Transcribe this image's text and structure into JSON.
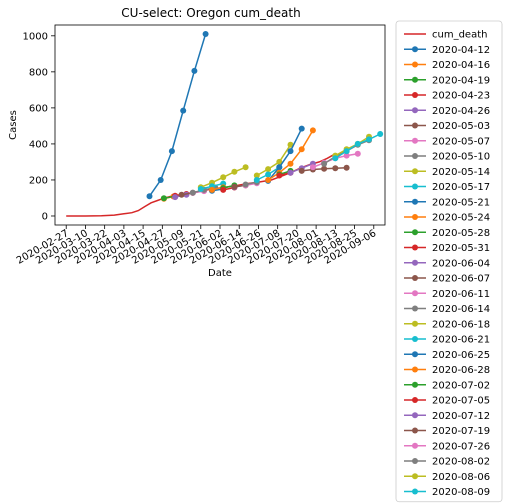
{
  "chart_data": {
    "type": "line",
    "title": "CU-select: Oregon cum_death",
    "xlabel": "Date",
    "ylabel": "Cases",
    "xlim": [
      "2020-02-20",
      "2020-09-13"
    ],
    "ylim": [
      -50,
      1060
    ],
    "x_ticks": [
      "2020-02-27",
      "2020-03-10",
      "2020-03-22",
      "2020-04-03",
      "2020-04-15",
      "2020-04-27",
      "2020-05-09",
      "2020-05-21",
      "2020-06-02",
      "2020-06-14",
      "2020-06-26",
      "2020-07-08",
      "2020-07-20",
      "2020-08-01",
      "2020-08-13",
      "2020-08-25",
      "2020-09-06"
    ],
    "y_ticks": [
      0,
      200,
      400,
      600,
      800,
      1000
    ],
    "legend_position": "outside-right",
    "actual": {
      "name": "cum_death",
      "color": "#d62728",
      "x": [
        "2020-02-27",
        "2020-03-10",
        "2020-03-20",
        "2020-03-28",
        "2020-04-03",
        "2020-04-08",
        "2020-04-12",
        "2020-04-16",
        "2020-04-20",
        "2020-04-24",
        "2020-04-28",
        "2020-05-02",
        "2020-05-08",
        "2020-05-14",
        "2020-05-20",
        "2020-05-28",
        "2020-06-05",
        "2020-06-13",
        "2020-06-20",
        "2020-06-27",
        "2020-07-04",
        "2020-07-10",
        "2020-07-16",
        "2020-07-22",
        "2020-07-28",
        "2020-08-03",
        "2020-08-08",
        "2020-08-13"
      ],
      "y": [
        0,
        0,
        1,
        5,
        12,
        18,
        30,
        52,
        73,
        86,
        99,
        108,
        118,
        127,
        137,
        150,
        160,
        170,
        181,
        189,
        200,
        220,
        240,
        265,
        285,
        300,
        320,
        345
      ]
    },
    "series": [
      {
        "name": "2020-04-12",
        "color": "#1f77b4",
        "x": [
          "2020-04-19",
          "2020-04-26",
          "2020-05-03",
          "2020-05-10",
          "2020-05-17",
          "2020-05-24"
        ],
        "y": [
          110,
          200,
          360,
          585,
          805,
          1010
        ]
      },
      {
        "name": "2020-04-16",
        "color": "#ff7f0e",
        "x": [
          "2020-04-28",
          "2020-05-04"
        ],
        "y": [
          96,
          108
        ]
      },
      {
        "name": "2020-04-19",
        "color": "#2ca02c",
        "x": [
          "2020-04-28",
          "2020-05-05"
        ],
        "y": [
          98,
          110
        ]
      },
      {
        "name": "2020-04-23",
        "color": "#d62728",
        "x": [
          "2020-05-05",
          "2020-05-12"
        ],
        "y": [
          112,
          122
        ]
      },
      {
        "name": "2020-04-26",
        "color": "#9467bd",
        "x": [
          "2020-05-05",
          "2020-05-12"
        ],
        "y": [
          105,
          118
        ]
      },
      {
        "name": "2020-05-03",
        "color": "#8c564b",
        "x": [
          "2020-05-09",
          "2020-05-16",
          "2020-05-23"
        ],
        "y": [
          118,
          128,
          140
        ]
      },
      {
        "name": "2020-05-07",
        "color": "#e377c2",
        "x": [
          "2020-05-16",
          "2020-05-23"
        ],
        "y": [
          128,
          138
        ]
      },
      {
        "name": "2020-05-10",
        "color": "#7f7f7f",
        "x": [
          "2020-05-16",
          "2020-05-23",
          "2020-05-30"
        ],
        "y": [
          130,
          145,
          158
        ]
      },
      {
        "name": "2020-05-14",
        "color": "#bcbd22",
        "x": [
          "2020-05-21",
          "2020-05-28",
          "2020-06-04",
          "2020-06-11",
          "2020-06-18"
        ],
        "y": [
          160,
          185,
          215,
          245,
          270
        ]
      },
      {
        "name": "2020-05-17",
        "color": "#17becf",
        "x": [
          "2020-05-21",
          "2020-05-28",
          "2020-06-04"
        ],
        "y": [
          150,
          165,
          180
        ]
      },
      {
        "name": "2020-05-21",
        "color": "#1f77b4",
        "x": [
          "2020-05-28",
          "2020-06-04"
        ],
        "y": [
          140,
          150
        ]
      },
      {
        "name": "2020-05-24",
        "color": "#ff7f0e",
        "x": [
          "2020-05-28",
          "2020-06-04"
        ],
        "y": [
          145,
          160
        ]
      },
      {
        "name": "2020-05-28",
        "color": "#2ca02c",
        "x": [
          "2020-06-04",
          "2020-06-11"
        ],
        "y": [
          155,
          170
        ]
      },
      {
        "name": "2020-05-31",
        "color": "#d62728",
        "x": [
          "2020-06-04",
          "2020-06-11"
        ],
        "y": [
          145,
          158
        ]
      },
      {
        "name": "2020-06-04",
        "color": "#9467bd",
        "x": [
          "2020-06-11",
          "2020-06-18"
        ],
        "y": [
          160,
          172
        ]
      },
      {
        "name": "2020-06-07",
        "color": "#8c564b",
        "x": [
          "2020-06-11",
          "2020-06-18"
        ],
        "y": [
          162,
          170
        ]
      },
      {
        "name": "2020-06-11",
        "color": "#e377c2",
        "x": [
          "2020-06-18",
          "2020-06-25"
        ],
        "y": [
          170,
          182
        ]
      },
      {
        "name": "2020-06-14",
        "color": "#7f7f7f",
        "x": [
          "2020-06-18",
          "2020-06-25"
        ],
        "y": [
          175,
          188
        ]
      },
      {
        "name": "2020-06-18",
        "color": "#bcbd22",
        "x": [
          "2020-06-25",
          "2020-07-02",
          "2020-07-09",
          "2020-07-16"
        ],
        "y": [
          225,
          260,
          300,
          395
        ]
      },
      {
        "name": "2020-06-21",
        "color": "#17becf",
        "x": [
          "2020-06-25",
          "2020-07-02",
          "2020-07-09"
        ],
        "y": [
          200,
          230,
          270
        ]
      },
      {
        "name": "2020-06-25",
        "color": "#1f77b4",
        "x": [
          "2020-07-02",
          "2020-07-09",
          "2020-07-16",
          "2020-07-23"
        ],
        "y": [
          195,
          270,
          360,
          485
        ]
      },
      {
        "name": "2020-06-28",
        "color": "#ff7f0e",
        "x": [
          "2020-07-02",
          "2020-07-09",
          "2020-07-16",
          "2020-07-23",
          "2020-07-30"
        ],
        "y": [
          200,
          240,
          290,
          370,
          475
        ]
      },
      {
        "name": "2020-07-02",
        "color": "#2ca02c",
        "x": [
          "2020-07-09",
          "2020-07-16"
        ],
        "y": [
          230,
          250
        ]
      },
      {
        "name": "2020-07-05",
        "color": "#d62728",
        "x": [
          "2020-07-09",
          "2020-07-16"
        ],
        "y": [
          225,
          240
        ]
      },
      {
        "name": "2020-07-12",
        "color": "#9467bd",
        "x": [
          "2020-07-16",
          "2020-07-23",
          "2020-07-30"
        ],
        "y": [
          240,
          265,
          290
        ]
      },
      {
        "name": "2020-07-19",
        "color": "#8c564b",
        "x": [
          "2020-07-23",
          "2020-07-30",
          "2020-08-06",
          "2020-08-13",
          "2020-08-20"
        ],
        "y": [
          250,
          258,
          262,
          265,
          268
        ]
      },
      {
        "name": "2020-07-26",
        "color": "#e377c2",
        "x": [
          "2020-07-30",
          "2020-08-06",
          "2020-08-13",
          "2020-08-20",
          "2020-08-27"
        ],
        "y": [
          270,
          295,
          320,
          335,
          345
        ]
      },
      {
        "name": "2020-08-02",
        "color": "#7f7f7f",
        "x": [
          "2020-08-06",
          "2020-08-13",
          "2020-08-20",
          "2020-08-27",
          "2020-09-03"
        ],
        "y": [
          290,
          330,
          360,
          395,
          420
        ]
      },
      {
        "name": "2020-08-06",
        "color": "#bcbd22",
        "x": [
          "2020-08-13",
          "2020-08-20",
          "2020-08-27",
          "2020-09-03"
        ],
        "y": [
          335,
          370,
          400,
          440
        ]
      },
      {
        "name": "2020-08-09",
        "color": "#17becf",
        "x": [
          "2020-08-13",
          "2020-08-20",
          "2020-08-27",
          "2020-09-03",
          "2020-09-10"
        ],
        "y": [
          320,
          360,
          400,
          425,
          455
        ]
      }
    ]
  }
}
